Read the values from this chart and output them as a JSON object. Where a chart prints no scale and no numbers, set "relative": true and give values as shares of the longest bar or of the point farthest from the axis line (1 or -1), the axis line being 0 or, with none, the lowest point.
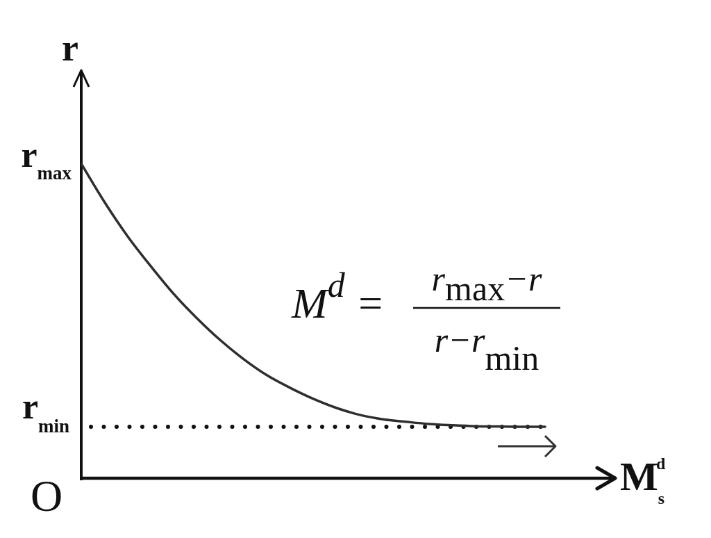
{
  "chart_data": {
    "type": "line",
    "relative": true,
    "ylabel": "r",
    "xlabel": "M$_{s}$$^{d}$",
    "categories": [
      null,
      null,
      null,
      null,
      null,
      null,
      null,
      null,
      null,
      null,
      null,
      null,
      null,
      null,
      null,
      null,
      null,
      null,
      null,
      null,
      null
    ],
    "values": [
      1,
      0.878,
      0.769,
      0.674,
      0.585,
      0.508,
      0.439,
      0.379,
      0.328,
      0.288,
      0.253,
      0.224,
      0.202,
      0.188,
      0.18,
      0.173,
      0.169,
      0.166,
      0.165,
      0.164,
      0.164
    ],
    "color": "#2e2e2e",
    "ref_lines": [
      {
        "axis": "y",
        "value": 0.164,
        "label": "r$_{min}$",
        "line_style": "dotted",
        "color": "#111111"
      }
    ],
    "annotations": [
      "r$_{max}$",
      "O",
      "M$^{d}$ =",
      "r$_{max}$−r",
      "r−r$_{min}$"
    ]
  }
}
